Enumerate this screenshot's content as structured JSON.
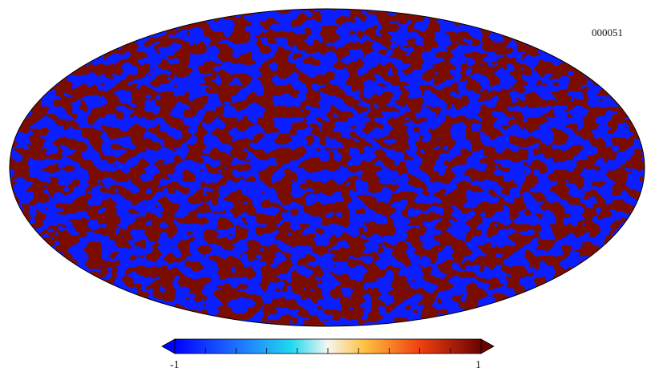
{
  "map": {
    "id_label": "000051",
    "projection": "mollweide",
    "colors": {
      "low": "#0a1eff",
      "mid_low": "#1f7fff",
      "cyan": "#20d8f0",
      "white": "#f4f6ee",
      "yellow": "#ffd060",
      "orange": "#ff8a10",
      "red": "#e0300a",
      "high": "#7a0a04",
      "outline": "#000000"
    }
  },
  "colorbar": {
    "min_label": "-1",
    "max_label": "1",
    "range": [
      -1,
      1
    ],
    "ticks": 10
  }
}
